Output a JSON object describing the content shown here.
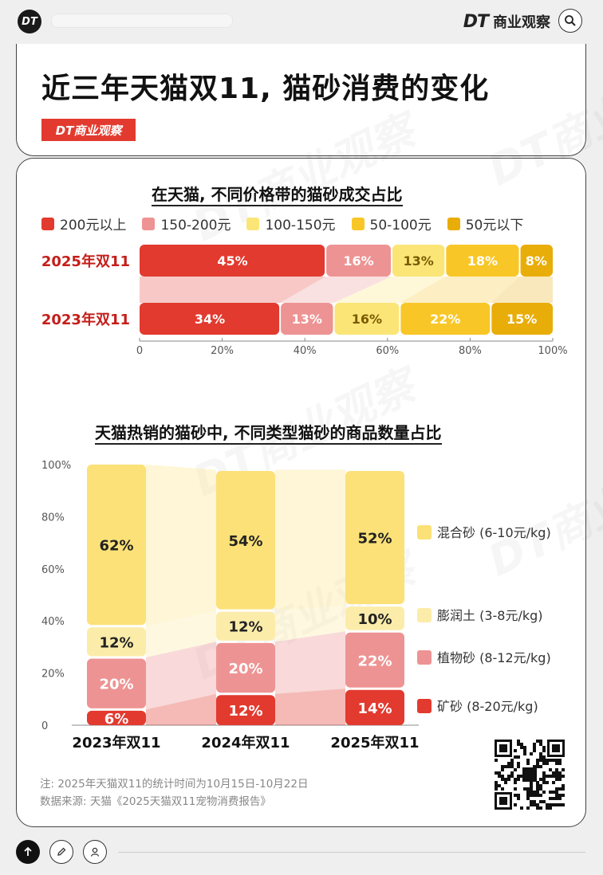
{
  "header": {
    "logo_text": "DT",
    "brand_mark": "DT",
    "brand_name": "商业观察",
    "search_icon": "search-icon"
  },
  "title": "近三年天猫双11, 猫砂消费的变化",
  "tag": "DT商业观察",
  "chart_data": [
    {
      "type": "bar",
      "orientation": "horizontal-stacked-100",
      "title": "在天猫, 不同价格带的猫砂成交占比",
      "categories": [
        "2025年双11",
        "2023年双11"
      ],
      "series": [
        {
          "name": "200元以上",
          "values": [
            45,
            34
          ],
          "color": "#e23a2f"
        },
        {
          "name": "150-200元",
          "values": [
            16,
            13
          ],
          "color": "#ee9393"
        },
        {
          "name": "100-150元",
          "values": [
            13,
            16
          ],
          "color": "#fbe577"
        },
        {
          "name": "50-100元",
          "values": [
            18,
            22
          ],
          "color": "#f8c727"
        },
        {
          "name": "50元以下",
          "values": [
            8,
            15
          ],
          "color": "#e9ad09"
        }
      ],
      "xlim": [
        0,
        100
      ],
      "x_ticks": [
        "0",
        "20%",
        "40%",
        "60%",
        "80%",
        "100%"
      ],
      "legend": "top"
    },
    {
      "type": "bar",
      "orientation": "vertical-stacked-100",
      "title": "天猫热销的猫砂中, 不同类型猫砂的商品数量占比",
      "categories": [
        "2023年双11",
        "2024年双11",
        "2025年双11"
      ],
      "series": [
        {
          "name": "矿砂 (8-20元/kg)",
          "values": [
            6,
            12,
            14
          ],
          "color": "#e23a2f"
        },
        {
          "name": "植物砂 (8-12元/kg)",
          "values": [
            20,
            20,
            22
          ],
          "color": "#ee9393"
        },
        {
          "name": "膨润土 (3-8元/kg)",
          "values": [
            12,
            12,
            10
          ],
          "color": "#fcecaa"
        },
        {
          "name": "混合砂 (6-10元/kg)",
          "values": [
            62,
            54,
            52
          ],
          "color": "#fbe177"
        }
      ],
      "ylim": [
        0,
        100
      ],
      "y_ticks": [
        "0",
        "20%",
        "40%",
        "60%",
        "80%",
        "100%"
      ],
      "legend": "right"
    }
  ],
  "notes": {
    "note": "注: 2025年天猫双11的统计时间为10月15日-10月22日",
    "source": "数据来源: 天猫《2025天猫双11宠物消费报告》"
  },
  "watermark": "DT商业观察",
  "bottom_bar": {
    "up_icon": "arrow-up-icon",
    "edit_icon": "pencil-icon",
    "user_icon": "user-icon"
  }
}
